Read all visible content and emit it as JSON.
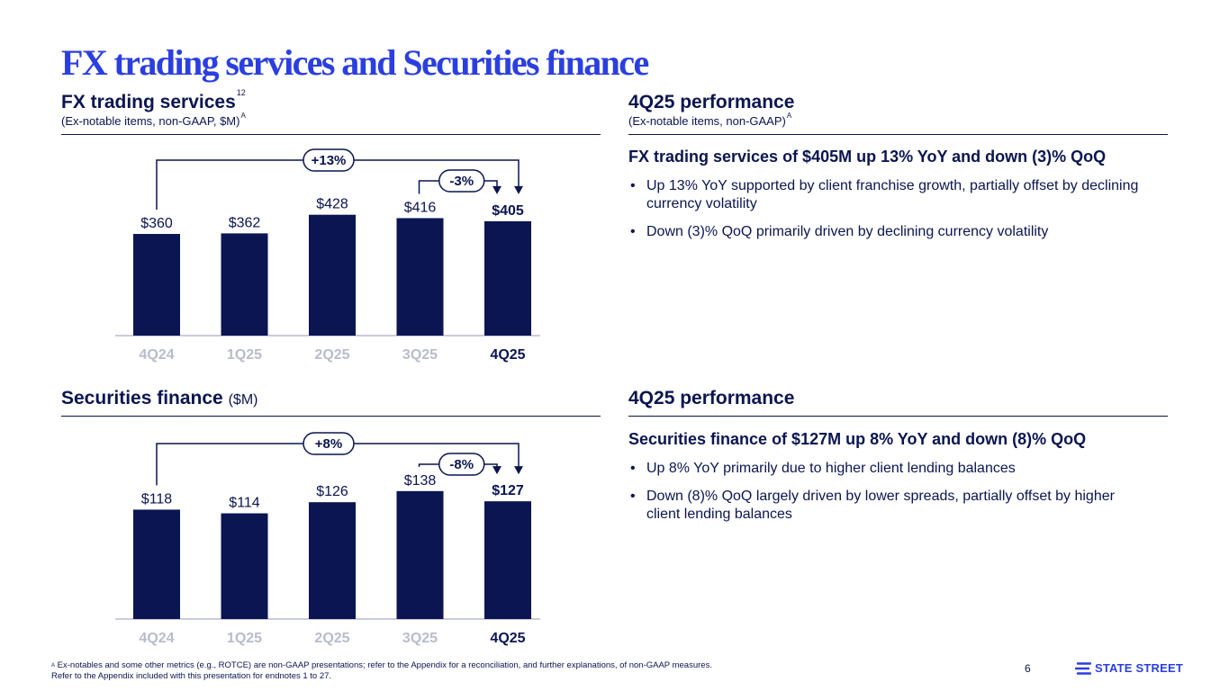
{
  "page": {
    "title": "FX trading services and Securities finance",
    "page_number": "6",
    "brand": "STATE STREET",
    "brand_icon": "state-street-logo-icon",
    "colors": {
      "navy": "#0a1551",
      "blue": "#2b3fe0",
      "axis": "#b8bccb",
      "white": "#ffffff"
    }
  },
  "fx": {
    "title": "FX trading services",
    "title_sup": "12",
    "subtitle": "(Ex-notable items, non-GAAP, $M)",
    "subtitle_sup": "A"
  },
  "sec": {
    "title": "Securities finance",
    "unit": "($M)"
  },
  "fx_perf": {
    "title": "4Q25 performance",
    "subtitle": "(Ex-notable items, non-GAAP)",
    "subtitle_sup": "A",
    "headline": "FX trading services of $405M up 13% YoY and down (3)% QoQ",
    "bullets": [
      "Up 13% YoY supported by client franchise growth, partially offset by declining currency volatility",
      "Down (3)% QoQ primarily driven by declining currency volatility"
    ]
  },
  "sec_perf": {
    "title": "4Q25 performance",
    "headline": "Securities finance of $127M up 8% YoY and down (8)% QoQ",
    "bullets": [
      "Up 8% YoY primarily due to higher client lending balances",
      "Down (8)% QoQ largely driven by lower spreads, partially offset by higher client lending balances"
    ]
  },
  "chart_data": [
    {
      "type": "bar",
      "categories": [
        "4Q24",
        "1Q25",
        "2Q25",
        "3Q25",
        "4Q25"
      ],
      "values": [
        360,
        362,
        428,
        416,
        405
      ],
      "value_labels": [
        "$360",
        "$362",
        "$428",
        "$416",
        "$405"
      ],
      "title": "FX trading services",
      "ylabel": "",
      "ylim": [
        0,
        650
      ],
      "grid": false,
      "legend": "none",
      "highlight_index": 4,
      "annotations": [
        {
          "label": "+13%",
          "from_index": 0,
          "to_index": 4
        },
        {
          "label": "-3%",
          "from_index": 3,
          "to_index": 4
        }
      ]
    },
    {
      "type": "bar",
      "categories": [
        "4Q24",
        "1Q25",
        "2Q25",
        "3Q25",
        "4Q25"
      ],
      "values": [
        118,
        114,
        126,
        138,
        127
      ],
      "value_labels": [
        "$118",
        "$114",
        "$126",
        "$138",
        "$127"
      ],
      "title": "Securities finance",
      "ylabel": "",
      "ylim": [
        0,
        198
      ],
      "grid": false,
      "legend": "none",
      "highlight_index": 4,
      "annotations": [
        {
          "label": "+8%",
          "from_index": 0,
          "to_index": 4
        },
        {
          "label": "-8%",
          "from_index": 3,
          "to_index": 4
        }
      ]
    }
  ],
  "footnote": {
    "marker": "A",
    "line1": " Ex-notables and some other metrics (e.g., ROTCE) are non-GAAP presentations; refer to the Appendix for a reconciliation, and further explanations, of non-GAAP measures.",
    "line2": "Refer to the Appendix included with this presentation for endnotes 1 to 27."
  }
}
